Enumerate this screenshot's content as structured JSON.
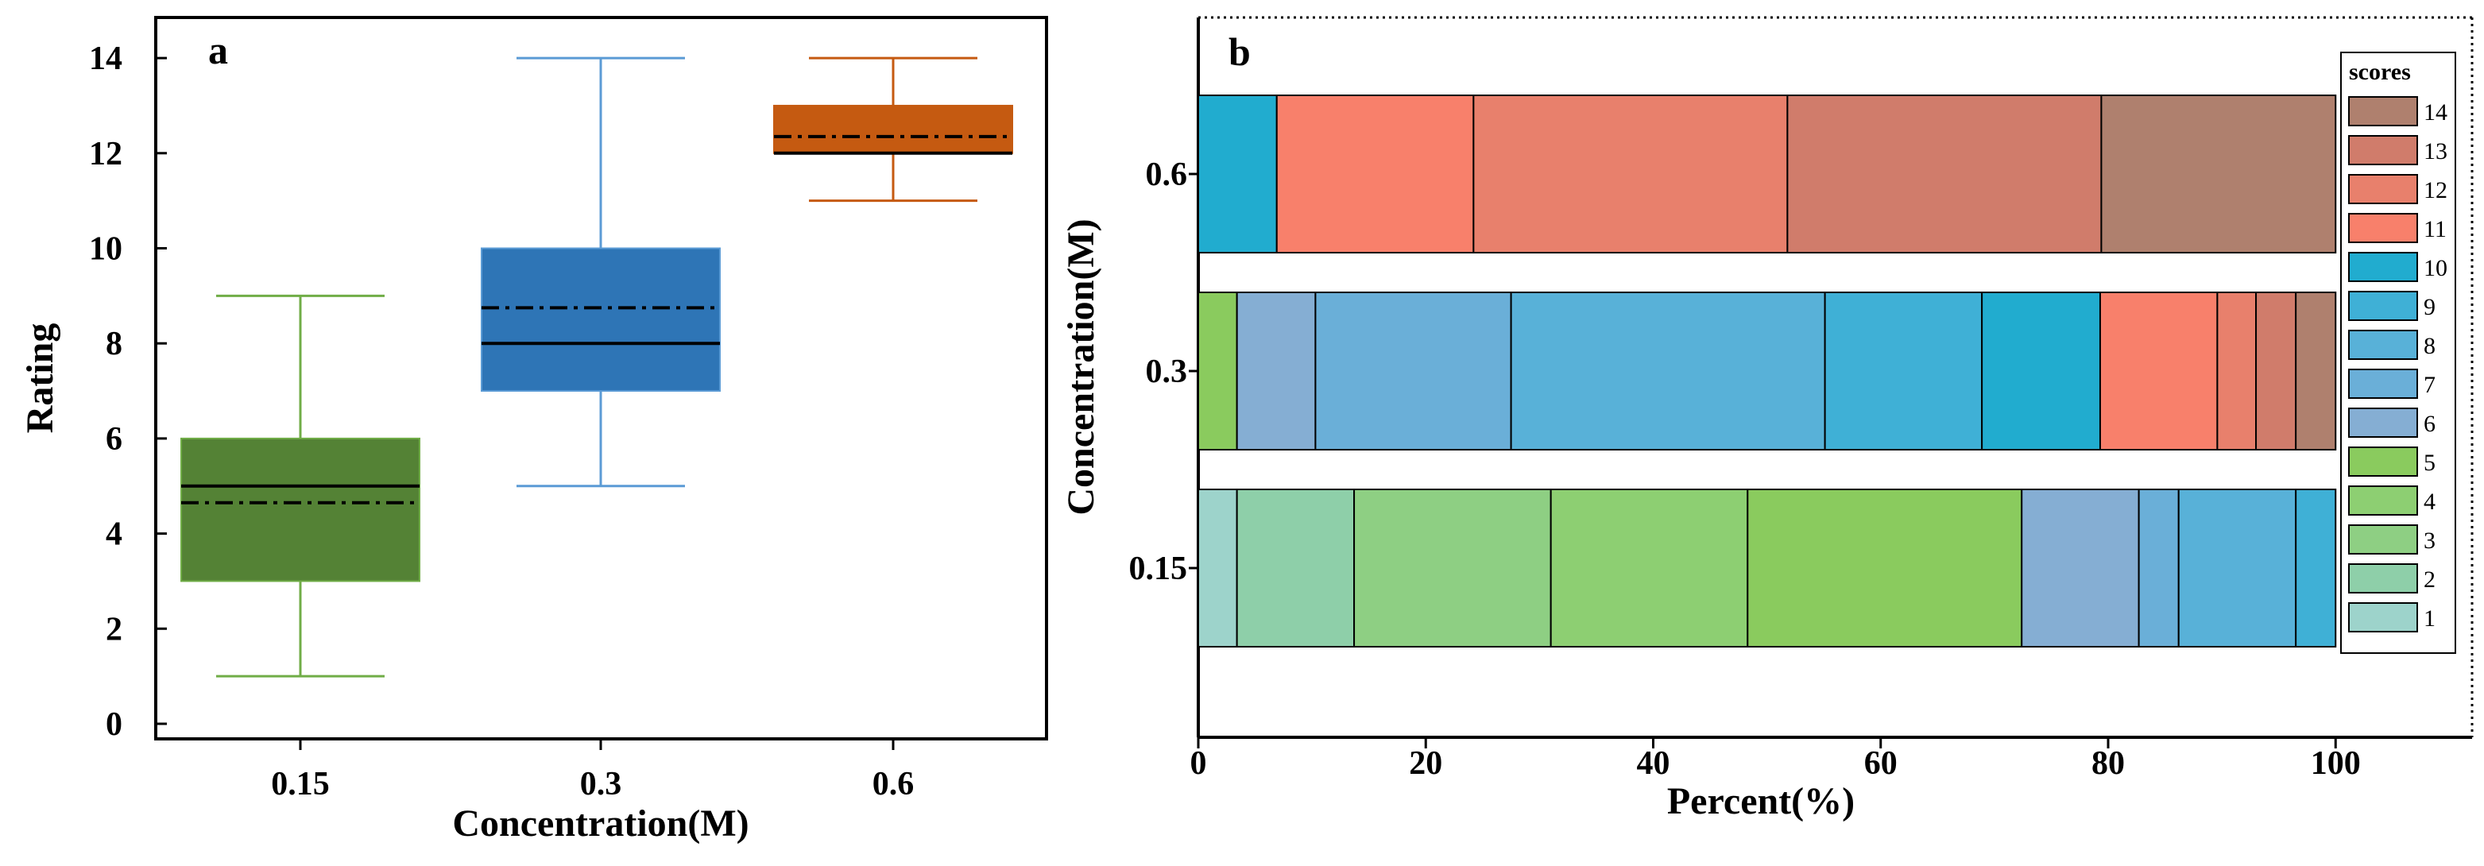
{
  "chart_data": [
    {
      "panel": "a",
      "type": "box",
      "xlabel": "Concentration(M)",
      "ylabel": "Rating",
      "ylim": [
        -0.3,
        14.8
      ],
      "yticks": [
        "0",
        "2",
        "4",
        "6",
        "8",
        "10",
        "12",
        "14"
      ],
      "categories": [
        "0.15",
        "0.3",
        "0.6"
      ],
      "boxes": [
        {
          "category": "0.15",
          "min": 1,
          "q1": 3,
          "median": 5,
          "mean": 4.65,
          "q3": 6,
          "max": 9,
          "color": "#548235",
          "edge": "#70AD47"
        },
        {
          "category": "0.3",
          "min": 5,
          "q1": 7,
          "median": 8,
          "mean": 8.75,
          "q3": 10,
          "max": 14,
          "color": "#2E75B6",
          "edge": "#5B9BD5"
        },
        {
          "category": "0.6",
          "min": 11,
          "q1": 12,
          "median": 12,
          "mean": 12.35,
          "q3": 13,
          "max": 14,
          "color": "#C55A11",
          "edge": "#C55A11"
        }
      ]
    },
    {
      "panel": "b",
      "type": "stacked-bar-horizontal",
      "xlabel": "Percent(%)",
      "ylabel": "Concentration(M)",
      "xlim": [
        0,
        112
      ],
      "xticks": [
        "0",
        "20",
        "40",
        "60",
        "80",
        "100"
      ],
      "categories": [
        "0.15",
        "0.3",
        "0.6"
      ],
      "category_tick_labels": [
        "0.15",
        "0.3",
        "0.6"
      ],
      "legend_title": "scores",
      "legend_position": "right",
      "score_colors": {
        "1": "#9DD3CB",
        "2": "#8ECFA9",
        "3": "#8ECF83",
        "4": "#8DCF72",
        "5": "#8ACB5E",
        "6": "#85AED3",
        "7": "#6AAFD8",
        "8": "#58B1D8",
        "9": "#3FB0D6",
        "10": "#21ACCF",
        "11": "#F8806B",
        "12": "#E8806C",
        "13": "#D07C6B",
        "14": "#AF806E"
      },
      "series": [
        {
          "name": "1",
          "values": [
            3.4,
            0,
            0
          ]
        },
        {
          "name": "2",
          "values": [
            10.3,
            0,
            0
          ]
        },
        {
          "name": "3",
          "values": [
            17.3,
            0,
            0
          ]
        },
        {
          "name": "4",
          "values": [
            17.3,
            0,
            0
          ]
        },
        {
          "name": "5",
          "values": [
            24.1,
            3.4,
            0
          ]
        },
        {
          "name": "6",
          "values": [
            10.3,
            6.9,
            0
          ]
        },
        {
          "name": "7",
          "values": [
            3.5,
            17.2,
            0
          ]
        },
        {
          "name": "8",
          "values": [
            10.3,
            27.6,
            0
          ]
        },
        {
          "name": "9",
          "values": [
            3.5,
            13.8,
            0
          ]
        },
        {
          "name": "10",
          "values": [
            0,
            10.4,
            6.9
          ]
        },
        {
          "name": "11",
          "values": [
            0,
            10.3,
            17.3
          ]
        },
        {
          "name": "12",
          "values": [
            0,
            3.4,
            27.6
          ]
        },
        {
          "name": "13",
          "values": [
            0,
            3.5,
            27.6
          ]
        },
        {
          "name": "14",
          "values": [
            0,
            3.5,
            20.6
          ]
        }
      ]
    }
  ]
}
